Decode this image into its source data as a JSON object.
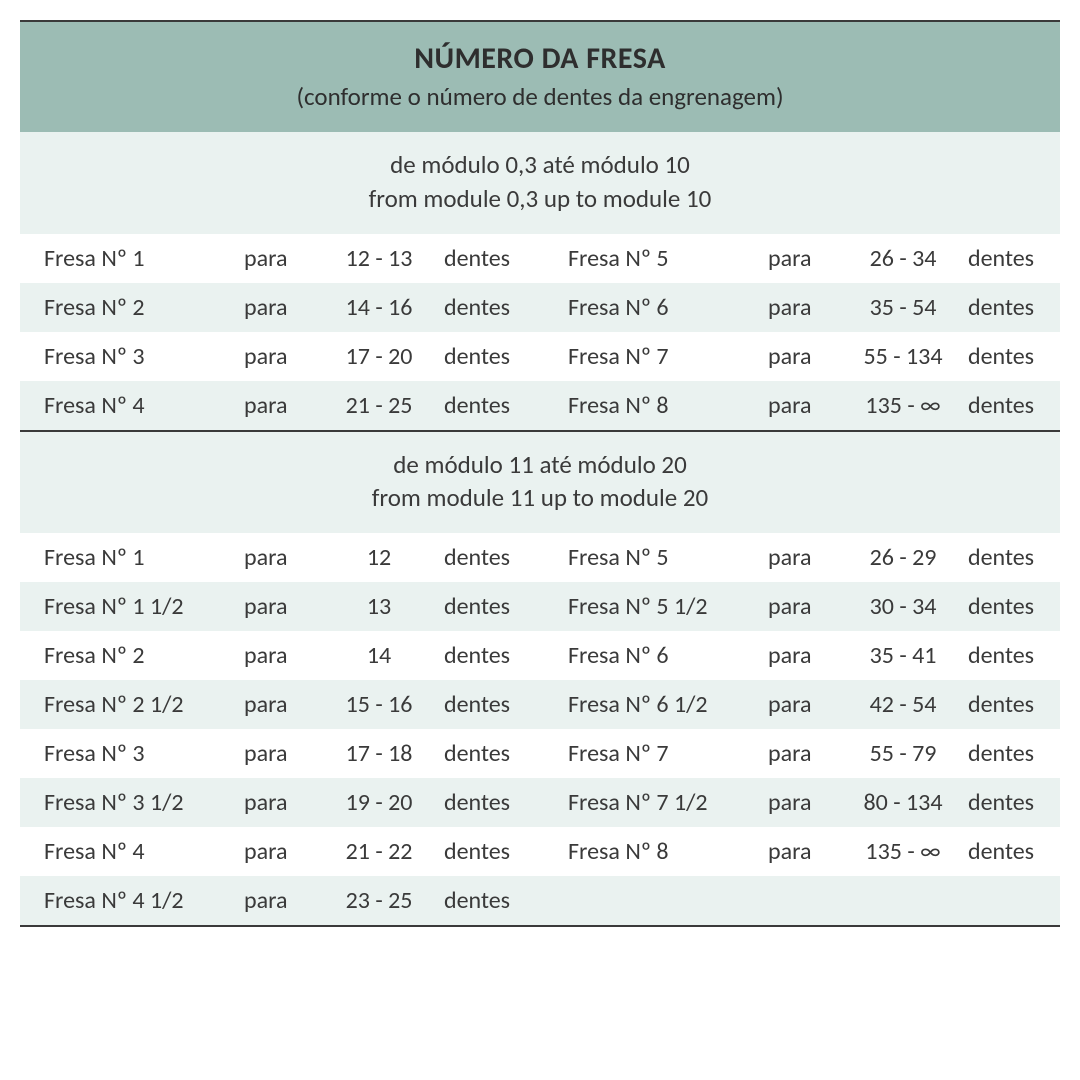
{
  "header": {
    "title": "NÚMERO DA FRESA",
    "subtitle": "(conforme o número de dentes da engrenagem)"
  },
  "sections": [
    {
      "label_pt": "de módulo 0,3 até módulo 10",
      "label_en": "from module 0,3 up to module 10",
      "left": [
        {
          "name": "Fresa Nº 1",
          "para": "para",
          "range": "12 - 13",
          "unit": "dentes"
        },
        {
          "name": "Fresa Nº 2",
          "para": "para",
          "range": "14 - 16",
          "unit": "dentes"
        },
        {
          "name": "Fresa Nº 3",
          "para": "para",
          "range": "17 - 20",
          "unit": "dentes"
        },
        {
          "name": "Fresa Nº 4",
          "para": "para",
          "range": "21 - 25",
          "unit": "dentes"
        }
      ],
      "right": [
        {
          "name": "Fresa Nº 5",
          "para": "para",
          "range": "26 - 34",
          "unit": "dentes"
        },
        {
          "name": "Fresa Nº 6",
          "para": "para",
          "range": "35 - 54",
          "unit": "dentes"
        },
        {
          "name": "Fresa Nº 7",
          "para": "para",
          "range": "55 - 134",
          "unit": "dentes"
        },
        {
          "name": "Fresa Nº 8",
          "para": "para",
          "range": "135 - ∞",
          "unit": "dentes"
        }
      ]
    },
    {
      "label_pt": "de módulo 11 até módulo 20",
      "label_en": "from module 11 up to module 20",
      "left": [
        {
          "name": "Fresa Nº 1",
          "para": "para",
          "range": "12",
          "unit": "dentes"
        },
        {
          "name": "Fresa Nº 1 1/2",
          "para": "para",
          "range": "13",
          "unit": "dentes"
        },
        {
          "name": "Fresa Nº 2",
          "para": "para",
          "range": "14",
          "unit": "dentes"
        },
        {
          "name": "Fresa Nº 2 1/2",
          "para": "para",
          "range": "15 - 16",
          "unit": "dentes"
        },
        {
          "name": "Fresa Nº 3",
          "para": "para",
          "range": "17 - 18",
          "unit": "dentes"
        },
        {
          "name": "Fresa Nº 3 1/2",
          "para": "para",
          "range": "19 - 20",
          "unit": "dentes"
        },
        {
          "name": "Fresa Nº 4",
          "para": "para",
          "range": "21 - 22",
          "unit": "dentes"
        },
        {
          "name": "Fresa Nº 4 1/2",
          "para": "para",
          "range": "23 - 25",
          "unit": "dentes"
        }
      ],
      "right": [
        {
          "name": "Fresa Nº 5",
          "para": "para",
          "range": "26 - 29",
          "unit": "dentes"
        },
        {
          "name": "Fresa Nº 5 1/2",
          "para": "para",
          "range": "30 - 34",
          "unit": "dentes"
        },
        {
          "name": "Fresa Nº 6",
          "para": "para",
          "range": "35 - 41",
          "unit": "dentes"
        },
        {
          "name": "Fresa Nº 6 1/2",
          "para": "para",
          "range": "42 - 54",
          "unit": "dentes"
        },
        {
          "name": "Fresa Nº 7",
          "para": "para",
          "range": "55 - 79",
          "unit": "dentes"
        },
        {
          "name": "Fresa Nº 7 1/2",
          "para": "para",
          "range": "80 - 134",
          "unit": "dentes"
        },
        {
          "name": "Fresa Nº 8",
          "para": "para",
          "range": "135 - ∞",
          "unit": "dentes"
        }
      ]
    }
  ],
  "colors": {
    "header_bg": "#9cbcb4",
    "band_bg": "#eaf2f0",
    "text": "#3a3a3a",
    "rule": "#3a3a3a"
  }
}
